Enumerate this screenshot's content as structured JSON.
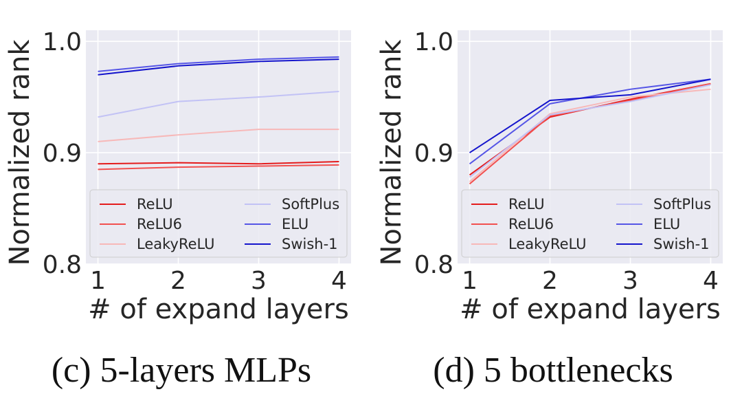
{
  "figure": {
    "captions": [
      "(c) 5-layers MLPs",
      "(d) 5 bottlenecks"
    ]
  },
  "chart_data": [
    {
      "type": "line",
      "title": "",
      "xlabel": "# of expand layers",
      "ylabel": "Normalized rank",
      "x": [
        1,
        2,
        3,
        4
      ],
      "x_tick_labels": [
        "1",
        "2",
        "3",
        "4"
      ],
      "y_tick_labels": [
        "0.8",
        "0.9",
        "1.0"
      ],
      "y_ticks": [
        0.8,
        0.9,
        1.0
      ],
      "xlim": [
        0.85,
        4.15
      ],
      "ylim": [
        0.8,
        1.01
      ],
      "grid": true,
      "legend_position": "lower-center",
      "series": [
        {
          "name": "ReLU",
          "color": "#e41b1c",
          "values": [
            0.89,
            0.891,
            0.89,
            0.892
          ]
        },
        {
          "name": "ReLU6",
          "color": "#f2504f",
          "values": [
            0.885,
            0.887,
            0.888,
            0.889
          ]
        },
        {
          "name": "LeakyReLU",
          "color": "#f7b8b8",
          "values": [
            0.91,
            0.916,
            0.921,
            0.921
          ]
        },
        {
          "name": "SoftPlus",
          "color": "#c2c2f5",
          "values": [
            0.932,
            0.946,
            0.95,
            0.955
          ]
        },
        {
          "name": "ELU",
          "color": "#5555e6",
          "values": [
            0.973,
            0.98,
            0.984,
            0.986
          ]
        },
        {
          "name": "Swish-1",
          "color": "#1414cc",
          "values": [
            0.97,
            0.978,
            0.982,
            0.984
          ]
        }
      ]
    },
    {
      "type": "line",
      "title": "",
      "xlabel": "# of expand layers",
      "ylabel": "Normalized rank",
      "x": [
        1,
        2,
        3,
        4
      ],
      "x_tick_labels": [
        "1",
        "2",
        "3",
        "4"
      ],
      "y_tick_labels": [
        "0.8",
        "0.9",
        "1.0"
      ],
      "y_ticks": [
        0.8,
        0.9,
        1.0
      ],
      "xlim": [
        0.85,
        4.15
      ],
      "ylim": [
        0.8,
        1.01
      ],
      "grid": true,
      "legend_position": "lower-center",
      "series": [
        {
          "name": "ReLU",
          "color": "#e41b1c",
          "values": [
            0.88,
            0.932,
            0.948,
            0.962
          ]
        },
        {
          "name": "ReLU6",
          "color": "#f2504f",
          "values": [
            0.872,
            0.933,
            0.947,
            0.962
          ]
        },
        {
          "name": "LeakyReLU",
          "color": "#f7b8b8",
          "values": [
            0.874,
            0.935,
            0.95,
            0.957
          ]
        },
        {
          "name": "SoftPlus",
          "color": "#c2c2f5",
          "values": [
            0.878,
            0.934,
            0.946,
            0.961
          ]
        },
        {
          "name": "ELU",
          "color": "#5555e6",
          "values": [
            0.89,
            0.944,
            0.957,
            0.966
          ]
        },
        {
          "name": "Swish-1",
          "color": "#1414cc",
          "values": [
            0.9,
            0.947,
            0.952,
            0.966
          ]
        }
      ]
    }
  ]
}
